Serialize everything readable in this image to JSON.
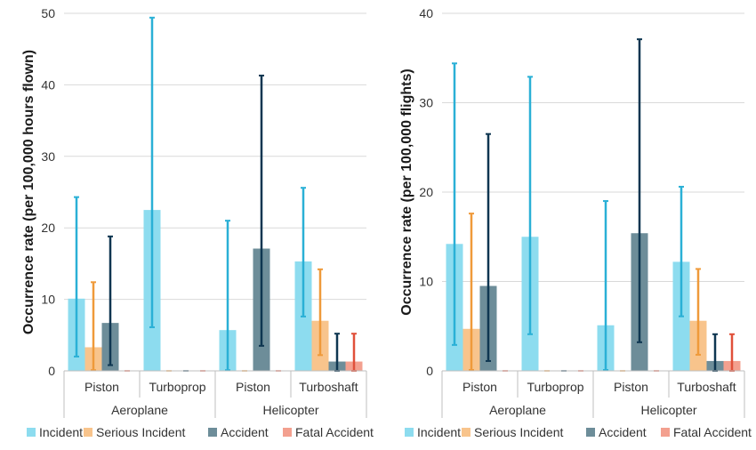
{
  "chart_data": [
    {
      "type": "bar",
      "title": "",
      "ylabel": "Occurrence rate (per 100,000 hours flown)",
      "xlabel": "",
      "ylim": [
        0,
        50
      ],
      "yticks": [
        "0",
        "10",
        "20",
        "30",
        "40",
        "50"
      ],
      "yticks_values": [
        0,
        10,
        20,
        30,
        40,
        50
      ],
      "grid": true,
      "legend_position": "bottom",
      "groups": [
        {
          "label": "Aeroplane",
          "categories": [
            "Piston",
            "Turboprop"
          ]
        },
        {
          "label": "Helicopter",
          "categories": [
            "Piston",
            "Turboshaft"
          ]
        }
      ],
      "series": [
        {
          "name": "Incident",
          "color": "#8ddcef",
          "error_color": "#2ab0d6",
          "values": [
            10.1,
            22.5,
            5.7,
            15.3
          ],
          "lower": [
            2.0,
            6.1,
            0.1,
            7.6
          ],
          "upper": [
            24.3,
            49.4,
            21.0,
            25.6
          ]
        },
        {
          "name": "Serious Incident",
          "color": "#f8c48c",
          "error_color": "#ef9a3a",
          "values": [
            3.3,
            0,
            0,
            7.0
          ],
          "lower": [
            0.1,
            0,
            0,
            2.2
          ],
          "upper": [
            12.4,
            0,
            0,
            14.2
          ]
        },
        {
          "name": "Accident",
          "color": "#6d8d99",
          "error_color": "#0e3651",
          "values": [
            6.7,
            0,
            17.1,
            1.3
          ],
          "lower": [
            0.8,
            0,
            3.5,
            0.0
          ],
          "upper": [
            18.8,
            0,
            41.3,
            5.2
          ]
        },
        {
          "name": "Fatal Accident",
          "color": "#f3a08f",
          "error_color": "#e0503a",
          "values": [
            0,
            0,
            0,
            1.3
          ],
          "lower": [
            0,
            0,
            0,
            0.0
          ],
          "upper": [
            0,
            0,
            0,
            5.2
          ]
        }
      ]
    },
    {
      "type": "bar",
      "title": "",
      "ylabel": "Occurrence rate (per 100,000 flights)",
      "xlabel": "",
      "ylim": [
        0,
        40
      ],
      "yticks": [
        "0",
        "10",
        "20",
        "30",
        "40"
      ],
      "yticks_values": [
        0,
        10,
        20,
        30,
        40
      ],
      "grid": true,
      "legend_position": "bottom",
      "groups": [
        {
          "label": "Aeroplane",
          "categories": [
            "Piston",
            "Turboprop"
          ]
        },
        {
          "label": "Helicopter",
          "categories": [
            "Piston",
            "Turboshaft"
          ]
        }
      ],
      "series": [
        {
          "name": "Incident",
          "color": "#8ddcef",
          "error_color": "#2ab0d6",
          "values": [
            14.2,
            15.0,
            5.1,
            12.2
          ],
          "lower": [
            2.9,
            4.1,
            0.1,
            6.1
          ],
          "upper": [
            34.4,
            32.9,
            19.0,
            20.6
          ]
        },
        {
          "name": "Serious Incident",
          "color": "#f8c48c",
          "error_color": "#ef9a3a",
          "values": [
            4.7,
            0,
            0,
            5.6
          ],
          "lower": [
            0.1,
            0,
            0,
            1.8
          ],
          "upper": [
            17.6,
            0,
            0,
            11.4
          ]
        },
        {
          "name": "Accident",
          "color": "#6d8d99",
          "error_color": "#0e3651",
          "values": [
            9.5,
            0,
            15.4,
            1.1
          ],
          "lower": [
            1.1,
            0,
            3.2,
            0.0
          ],
          "upper": [
            26.5,
            0,
            37.1,
            4.1
          ]
        },
        {
          "name": "Fatal Accident",
          "color": "#f3a08f",
          "error_color": "#e0503a",
          "values": [
            0,
            0,
            0,
            1.1
          ],
          "lower": [
            0,
            0,
            0,
            0.0
          ],
          "upper": [
            0,
            0,
            0,
            4.1
          ]
        }
      ]
    }
  ]
}
